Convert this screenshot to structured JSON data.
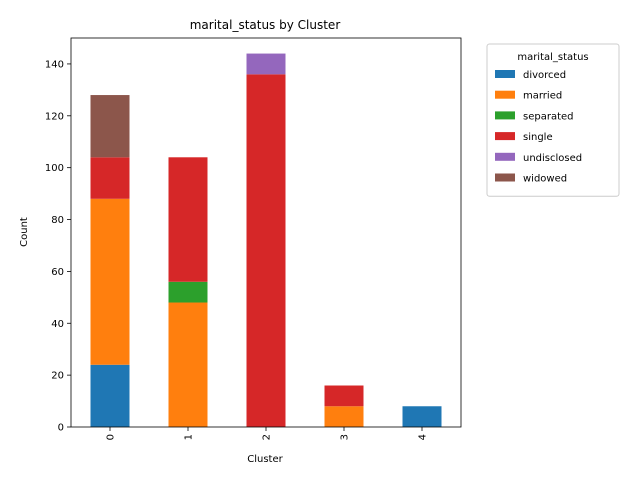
{
  "chart_data": {
    "type": "bar",
    "stacked": true,
    "title": "marital_status by Cluster",
    "xlabel": "Cluster",
    "ylabel": "Count",
    "categories": [
      "0",
      "1",
      "2",
      "3",
      "4"
    ],
    "ylim": [
      0,
      150
    ],
    "yticks": [
      0,
      20,
      40,
      60,
      80,
      100,
      120,
      140
    ],
    "legend_title": "marital_status",
    "legend_position": "outside-right",
    "grid": false,
    "series": [
      {
        "name": "divorced",
        "color": "#1f77b4",
        "values": [
          24,
          0,
          0,
          0,
          8
        ]
      },
      {
        "name": "married",
        "color": "#ff7f0e",
        "values": [
          64,
          48,
          0,
          8,
          0
        ]
      },
      {
        "name": "separated",
        "color": "#2ca02c",
        "values": [
          0,
          8,
          0,
          0,
          0
        ]
      },
      {
        "name": "single",
        "color": "#d62728",
        "values": [
          16,
          48,
          136,
          8,
          0
        ]
      },
      {
        "name": "undisclosed",
        "color": "#9467bd",
        "values": [
          0,
          0,
          8,
          0,
          0
        ]
      },
      {
        "name": "widowed",
        "color": "#8c564b",
        "values": [
          24,
          0,
          0,
          0,
          0
        ]
      }
    ]
  }
}
